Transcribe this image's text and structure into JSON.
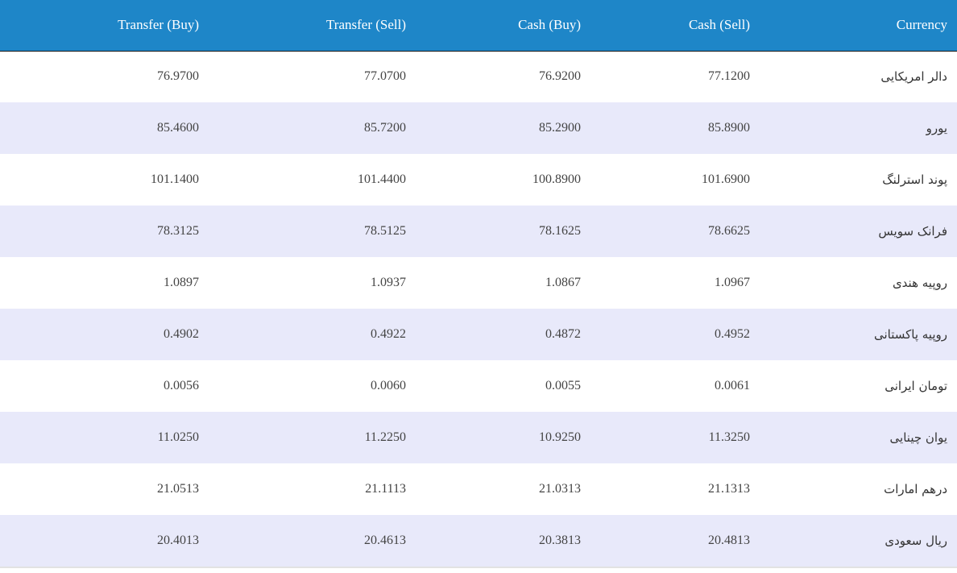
{
  "table": {
    "headers": {
      "transfer_buy": "Transfer (Buy)",
      "transfer_sell": "Transfer (Sell)",
      "cash_buy": "Cash (Buy)",
      "cash_sell": "Cash (Sell)",
      "currency": "Currency"
    },
    "rows": [
      {
        "transfer_buy": "76.9700",
        "transfer_sell": "77.0700",
        "cash_buy": "76.9200",
        "cash_sell": "77.1200",
        "currency": "دالر امریکایی"
      },
      {
        "transfer_buy": "85.4600",
        "transfer_sell": "85.7200",
        "cash_buy": "85.2900",
        "cash_sell": "85.8900",
        "currency": "یورو"
      },
      {
        "transfer_buy": "101.1400",
        "transfer_sell": "101.4400",
        "cash_buy": "100.8900",
        "cash_sell": "101.6900",
        "currency": "پوند استرلنگ"
      },
      {
        "transfer_buy": "78.3125",
        "transfer_sell": "78.5125",
        "cash_buy": "78.1625",
        "cash_sell": "78.6625",
        "currency": "فرانک سویس"
      },
      {
        "transfer_buy": "1.0897",
        "transfer_sell": "1.0937",
        "cash_buy": "1.0867",
        "cash_sell": "1.0967",
        "currency": "روپیه هندی"
      },
      {
        "transfer_buy": "0.4902",
        "transfer_sell": "0.4922",
        "cash_buy": "0.4872",
        "cash_sell": "0.4952",
        "currency": "روپیه پاکستانی"
      },
      {
        "transfer_buy": "0.0056",
        "transfer_sell": "0.0060",
        "cash_buy": "0.0055",
        "cash_sell": "0.0061",
        "currency": "تومان ایرانی"
      },
      {
        "transfer_buy": "11.0250",
        "transfer_sell": "11.2250",
        "cash_buy": "10.9250",
        "cash_sell": "11.3250",
        "currency": "یوان چینایی"
      },
      {
        "transfer_buy": "21.0513",
        "transfer_sell": "21.1113",
        "cash_buy": "21.0313",
        "cash_sell": "21.1313",
        "currency": "درهم امارات"
      },
      {
        "transfer_buy": "20.4013",
        "transfer_sell": "20.4613",
        "cash_buy": "20.3813",
        "cash_sell": "20.4813",
        "currency": "ریال سعودی"
      }
    ]
  },
  "colors": {
    "header_bg": "#1e86c8",
    "header_text": "#ffffff",
    "row_alt_bg": "#e8e9fa",
    "row_bg": "#ffffff",
    "cell_text": "#444444"
  }
}
